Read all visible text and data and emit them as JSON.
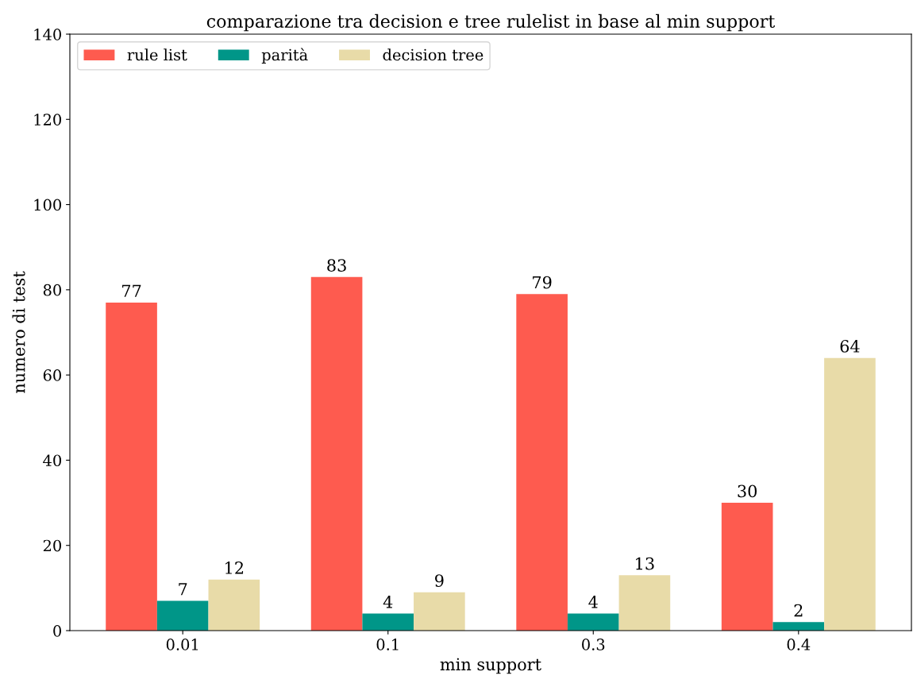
{
  "chart_data": {
    "type": "bar",
    "title": "comparazione tra decision e tree rulelist in base al min support",
    "xlabel": "min support",
    "ylabel": "numero di test",
    "categories": [
      "0.01",
      "0.1",
      "0.3",
      "0.4"
    ],
    "series": [
      {
        "name": "rule list",
        "color": "#fe5b4f",
        "values": [
          77,
          83,
          79,
          30
        ]
      },
      {
        "name": "parità",
        "color": "#009688",
        "values": [
          7,
          4,
          4,
          2
        ]
      },
      {
        "name": "decision tree",
        "color": "#e8dba8",
        "values": [
          12,
          9,
          13,
          64
        ]
      }
    ],
    "ylim": [
      0,
      140
    ],
    "yticks": [
      0,
      20,
      40,
      60,
      80,
      100,
      120,
      140
    ],
    "data_labels": true,
    "legend": "top left",
    "grid": false
  }
}
